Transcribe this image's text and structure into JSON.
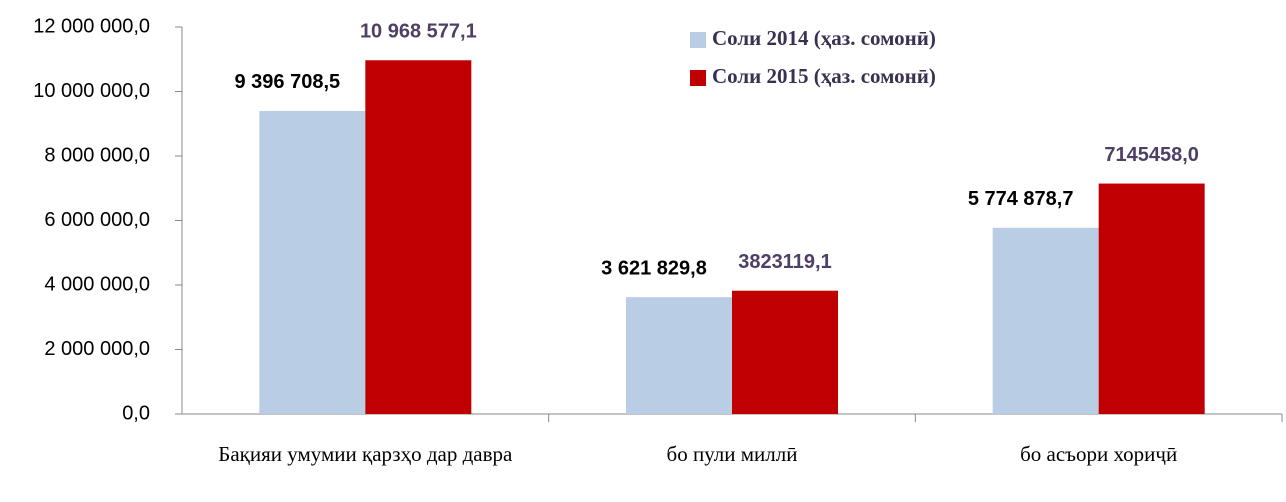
{
  "chart_data": {
    "type": "bar",
    "categories": [
      "Бақияи умумии қарзҳо дар давра",
      "бо пули миллӣ",
      "бо асъори хориҷӣ"
    ],
    "series": [
      {
        "name": "Соли 2014 (ҳаз. сомонӣ)",
        "color": "#b9cde5",
        "label_color": "#000000",
        "values": [
          9396708.5,
          3621829.8,
          5774878.7
        ],
        "value_labels": [
          "9 396 708,5",
          "3 621 829,8",
          "5 774 878,7"
        ]
      },
      {
        "name": "Соли 2015 (ҳаз. сомонӣ)",
        "color": "#c00000",
        "label_color": "#4f3f66",
        "values": [
          10968577.1,
          3823119.1,
          7145458.0
        ],
        "value_labels": [
          "10 968 577,1",
          "3823119,1",
          "7145458,0"
        ]
      }
    ],
    "ylim": [
      0,
      12000000
    ],
    "yticks": [
      {
        "value": 0,
        "label": "0,0"
      },
      {
        "value": 2000000,
        "label": "2 000 000,0"
      },
      {
        "value": 4000000,
        "label": "4 000 000,0"
      },
      {
        "value": 6000000,
        "label": "6 000 000,0"
      },
      {
        "value": 8000000,
        "label": "8 000 000,0"
      },
      {
        "value": 10000000,
        "label": "10 000 000,0"
      },
      {
        "value": 12000000,
        "label": "12 000 000,0"
      }
    ],
    "grid": false,
    "legend": "top-right"
  }
}
